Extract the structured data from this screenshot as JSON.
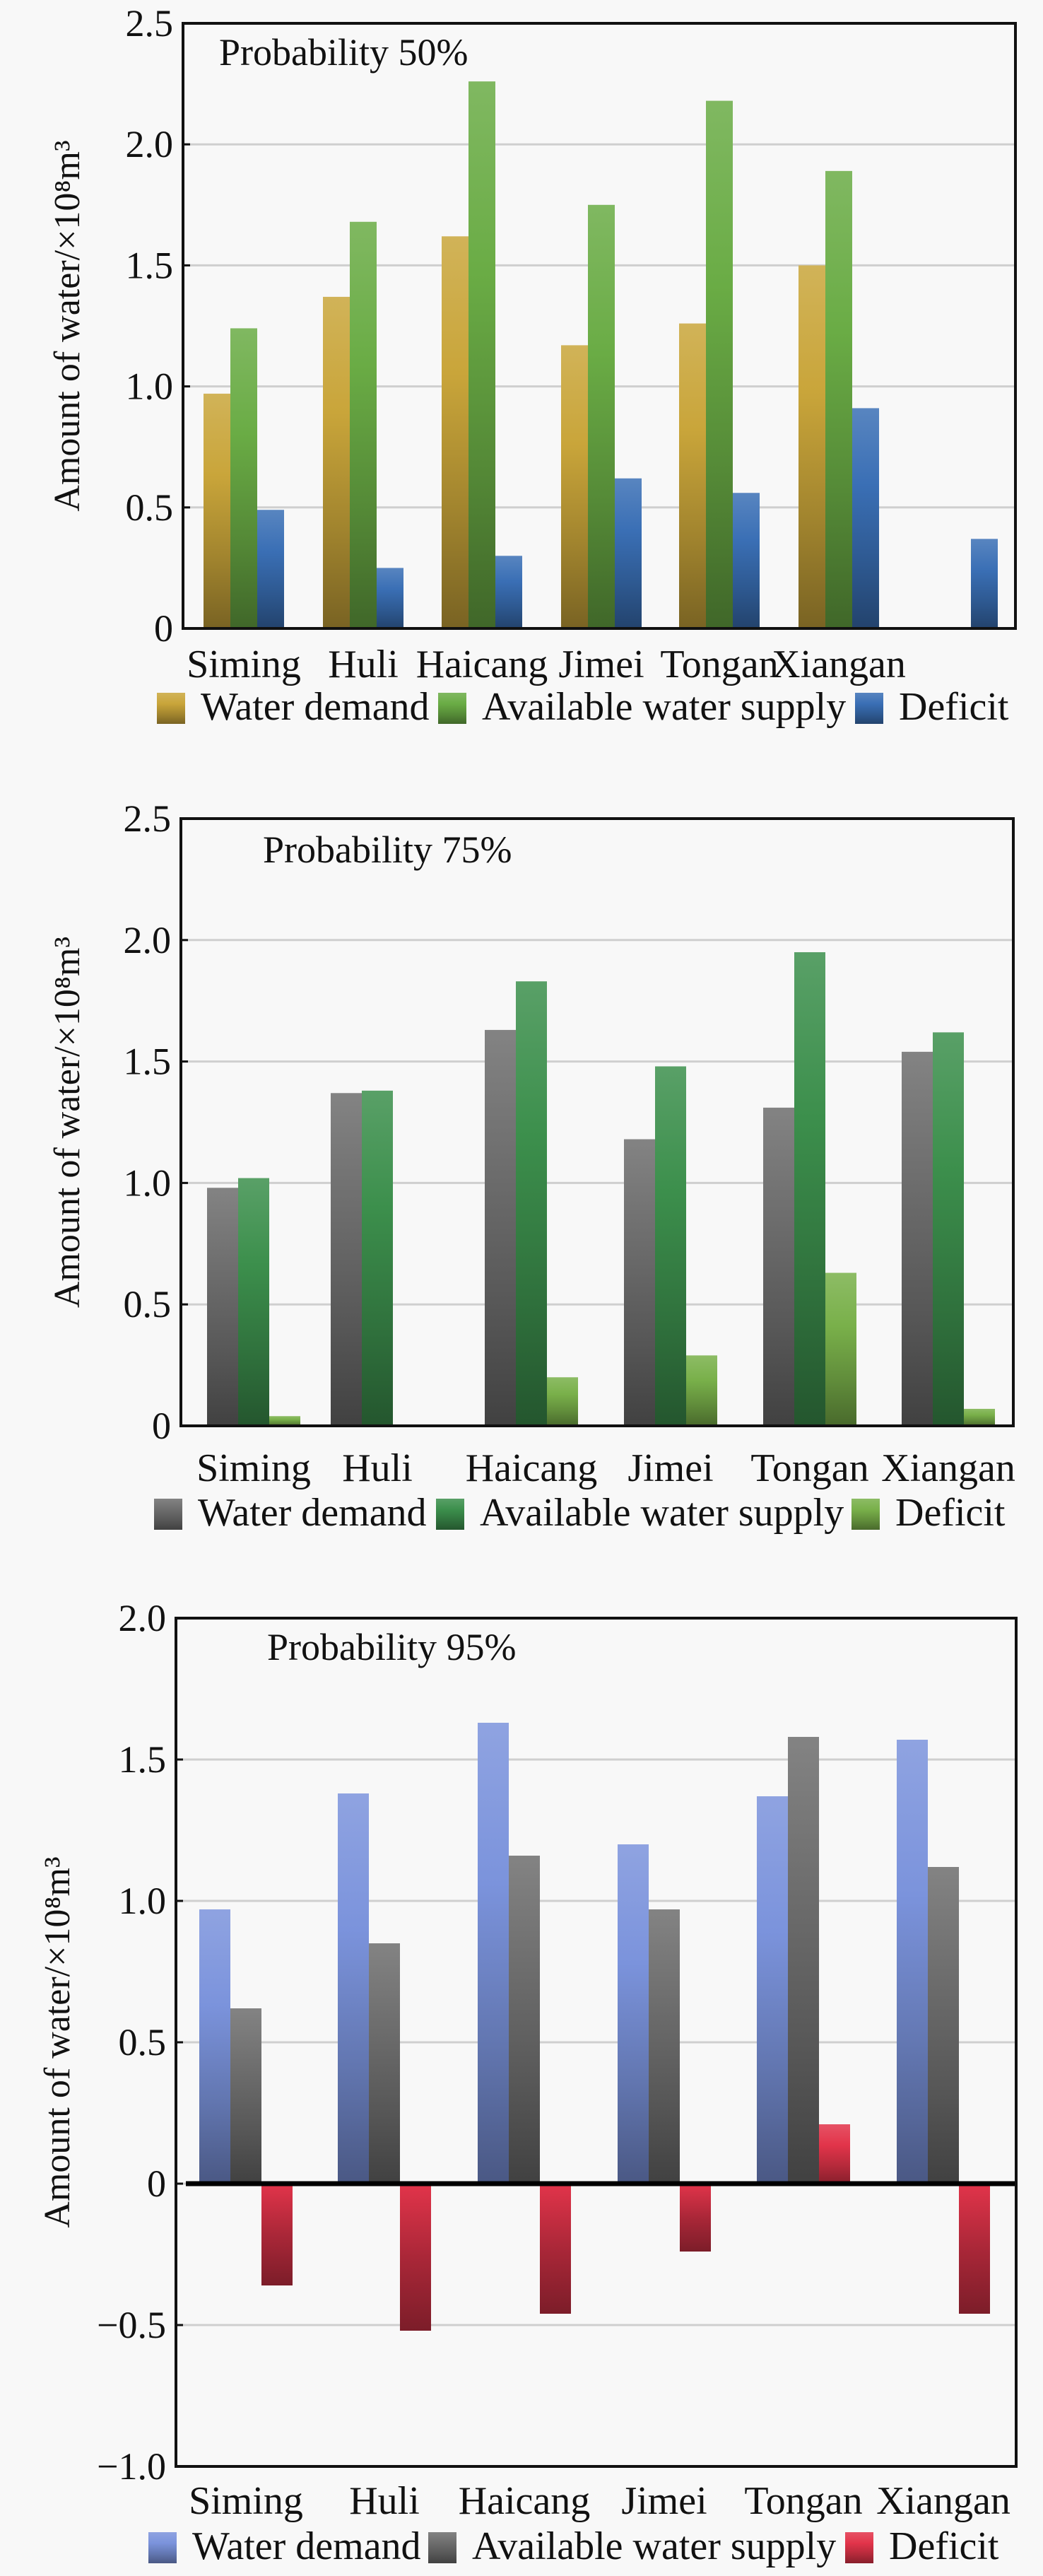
{
  "chart_data": [
    {
      "type": "bar",
      "title": "Probability  50%",
      "xlabel": "",
      "ylabel": "Amount of water/×10⁸m³",
      "ylim": [
        0,
        2.5
      ],
      "yticks": [
        0,
        0.5,
        1.0,
        1.5,
        2.0,
        2.5
      ],
      "ytick_labels": [
        "0",
        "0.5",
        "1.0",
        "1.5",
        "2.0",
        "2.5"
      ],
      "grid": true,
      "legend_position": "bottom",
      "categories": [
        "Siming",
        "Huli",
        "Haicang",
        "Jimei",
        "Tongan",
        "Xiangan"
      ],
      "series": [
        {
          "name": "Water demand",
          "color": "#c9a53a",
          "values": [
            0.97,
            1.37,
            1.62,
            1.17,
            1.26,
            1.5
          ]
        },
        {
          "name": "Available water supply",
          "color": "#6aac45",
          "values": [
            1.24,
            1.68,
            2.26,
            1.75,
            2.18,
            1.89
          ]
        },
        {
          "name": "Deficit",
          "color": "#3a6fb5",
          "values": [
            0.49,
            0.25,
            0.3,
            0.62,
            0.56,
            0.91
          ]
        }
      ],
      "extra_bar": {
        "series": "Deficit",
        "value": 0.37,
        "note": "unlabeled bar right of Xiangan"
      }
    },
    {
      "type": "bar",
      "title": "Probability  75%",
      "xlabel": "",
      "ylabel": "Amount of water/×10⁸m³",
      "ylim": [
        0,
        2.5
      ],
      "yticks": [
        0,
        0.5,
        1.0,
        1.5,
        2.0,
        2.5
      ],
      "ytick_labels": [
        "0",
        "0.5",
        "1.0",
        "1.5",
        "2.0",
        "2.5"
      ],
      "grid": true,
      "legend_position": "bottom",
      "categories": [
        "Siming",
        "Huli",
        "Haicang",
        "Jimei",
        "Tongan",
        "Xiangan"
      ],
      "series": [
        {
          "name": "Water demand",
          "color": "#6d6d6d",
          "values": [
            0.98,
            1.37,
            1.63,
            1.18,
            1.31,
            1.54
          ]
        },
        {
          "name": "Available water supply",
          "color": "#3c8f4c",
          "values": [
            1.02,
            1.38,
            1.83,
            1.48,
            1.95,
            1.62
          ]
        },
        {
          "name": "Deficit",
          "color": "#79b04a",
          "values": [
            0.04,
            0.0,
            0.2,
            0.29,
            0.63,
            0.07
          ]
        }
      ]
    },
    {
      "type": "bar",
      "title": "Probability 95%",
      "xlabel": "",
      "ylabel": "Amount of water/×10⁸m³",
      "ylim": [
        -1.0,
        2.0
      ],
      "yticks": [
        -1.0,
        -0.5,
        0,
        0.5,
        1.0,
        1.5,
        2.0
      ],
      "ytick_labels": [
        "−1.0",
        "−0.5",
        "0",
        "0.5",
        "1.0",
        "1.5",
        "2.0"
      ],
      "grid": true,
      "legend_position": "bottom",
      "categories": [
        "Siming",
        "Huli",
        "Haicang",
        "Jimei",
        "Tongan",
        "Xiangan"
      ],
      "series": [
        {
          "name": "Water demand",
          "color": "#7b93dc",
          "values": [
            0.97,
            1.38,
            1.63,
            1.2,
            1.37,
            1.57
          ]
        },
        {
          "name": "Available water supply",
          "color": "#6d6d6d",
          "values": [
            0.62,
            0.85,
            1.16,
            0.97,
            1.58,
            1.12
          ]
        },
        {
          "name": "Deficit",
          "color": "#e2344a",
          "values": [
            -0.36,
            -0.52,
            -0.46,
            -0.24,
            0.21,
            -0.46
          ]
        }
      ]
    }
  ]
}
